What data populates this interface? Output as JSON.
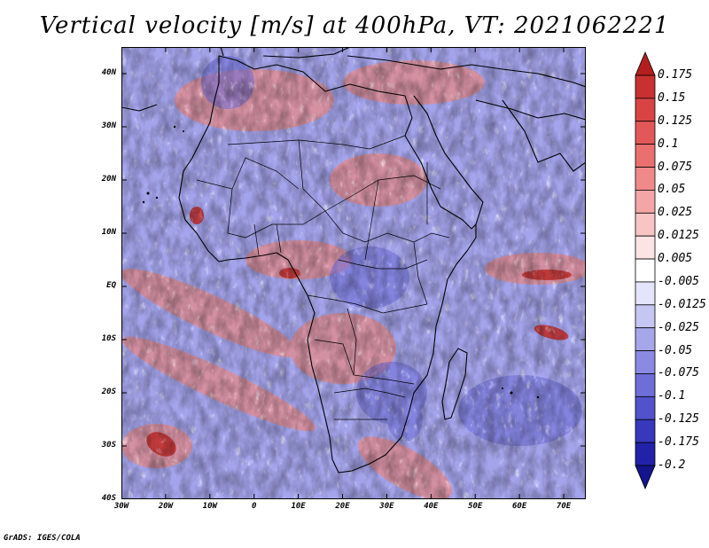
{
  "title": "Vertical velocity [m/s] at 400hPa, VT: 2021062221",
  "credit": "GrADS: IGES/COLA",
  "map": {
    "lon_range": [
      -30,
      75
    ],
    "lat_range": [
      -40,
      45
    ],
    "lat_labels": [
      "40N",
      "30N",
      "20N",
      "10N",
      "EQ",
      "10S",
      "20S",
      "30S",
      "40S"
    ],
    "lat_values": [
      40,
      30,
      20,
      10,
      0,
      -10,
      -20,
      -30,
      -40
    ],
    "lon_labels": [
      "30W",
      "20W",
      "10W",
      "0",
      "10E",
      "20E",
      "30E",
      "40E",
      "50E",
      "60E",
      "70E"
    ],
    "lon_values": [
      -30,
      -20,
      -10,
      0,
      10,
      20,
      30,
      40,
      50,
      60,
      70
    ]
  },
  "colorbar": {
    "labels": [
      "0.175",
      "0.15",
      "0.125",
      "0.1",
      "0.075",
      "0.05",
      "0.025",
      "0.0125",
      "0.005",
      "-0.005",
      "-0.0125",
      "-0.025",
      "-0.05",
      "-0.075",
      "-0.1",
      "-0.125",
      "-0.175",
      "-0.2"
    ],
    "colors": [
      "#b41e1e",
      "#c93030",
      "#d84444",
      "#e25858",
      "#ea7070",
      "#f08a8a",
      "#f4a6a6",
      "#f8c4c4",
      "#fce4e4",
      "#ffffff",
      "#e4e4fa",
      "#c6c6f2",
      "#a6a6ea",
      "#8a8ae2",
      "#6e6ed8",
      "#5252cc",
      "#3838bc",
      "#2222a8",
      "#14148c"
    ]
  },
  "palette": {
    "red": "#d84444",
    "blue": "#6e6ed8",
    "coast": "#000000"
  }
}
